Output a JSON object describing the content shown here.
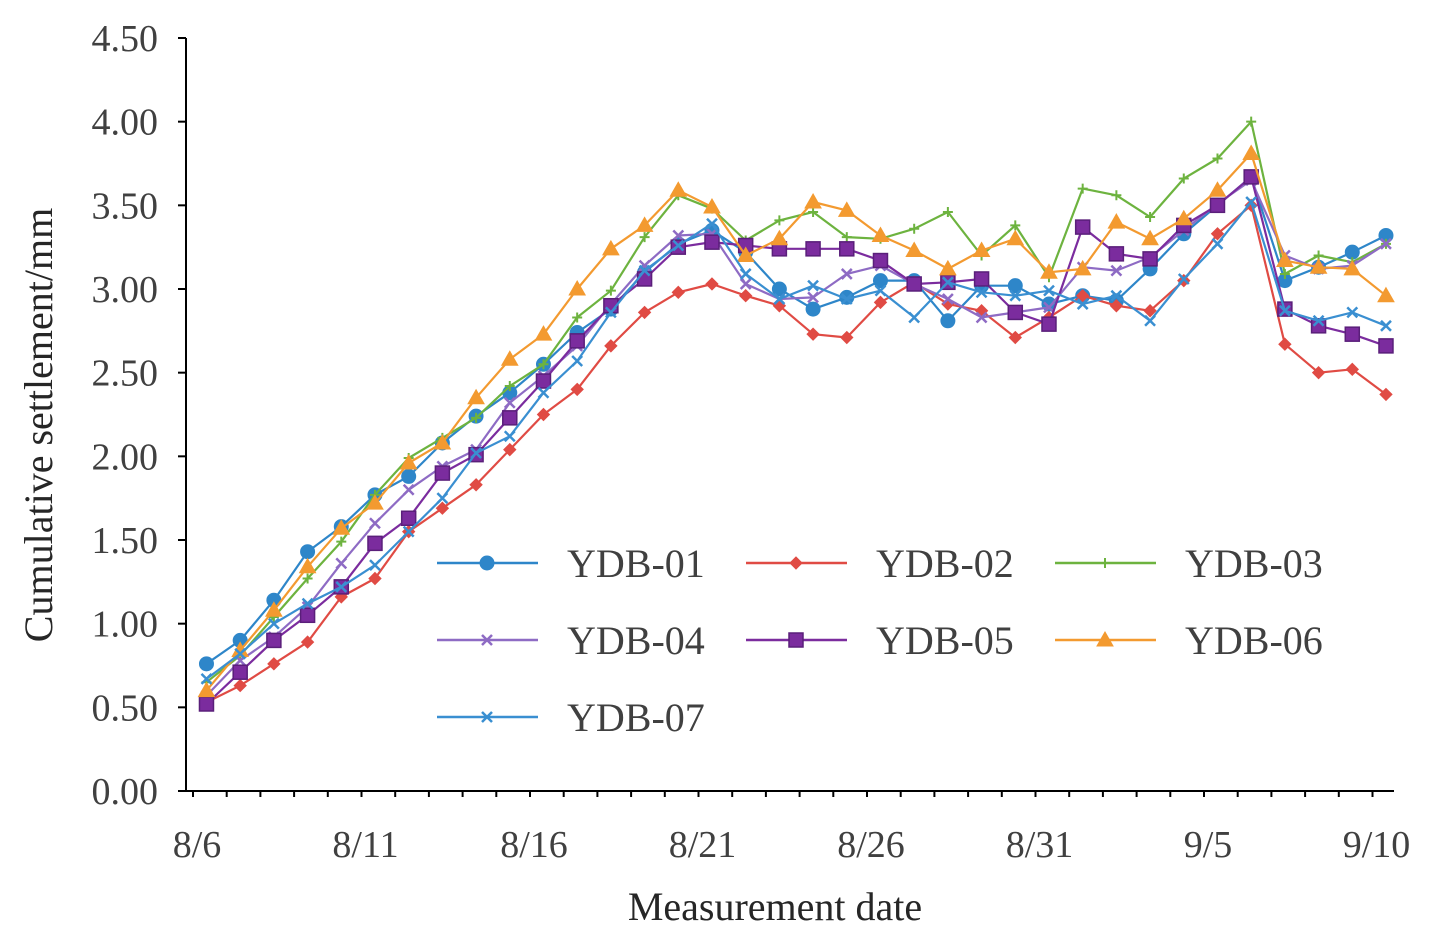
{
  "chart_data": {
    "type": "line",
    "title": "",
    "xlabel": "Measurement date",
    "ylabel": "Cumulative settlement/mm",
    "ylim": [
      0,
      4.5
    ],
    "yticks": [
      "0.00",
      "0.50",
      "1.00",
      "1.50",
      "2.00",
      "2.50",
      "3.00",
      "3.50",
      "4.00",
      "4.50"
    ],
    "xlim": [
      0,
      36
    ],
    "xticks": [
      {
        "label": "8/6",
        "at": 0
      },
      {
        "label": "8/11",
        "at": 5
      },
      {
        "label": "8/16",
        "at": 10
      },
      {
        "label": "8/21",
        "at": 15
      },
      {
        "label": "8/26",
        "at": 20
      },
      {
        "label": "8/31",
        "at": 25
      },
      {
        "label": "9/5",
        "at": 30
      },
      {
        "label": "9/10",
        "at": 35
      }
    ],
    "x": [
      0.4,
      1.4,
      2.4,
      3.4,
      4.4,
      5.4,
      6.4,
      7.4,
      8.4,
      9.4,
      10.4,
      11.4,
      12.4,
      13.4,
      14.4,
      15.4,
      16.4,
      17.4,
      18.4,
      19.4,
      20.4,
      21.4,
      22.4,
      23.4,
      24.4,
      25.4,
      26.4,
      27.4,
      28.4,
      29.4,
      30.4,
      31.4,
      32.4,
      33.4,
      34.4,
      35.4
    ],
    "series": [
      {
        "name": "YDB-01",
        "color": "#2E86C9",
        "marker": "circle",
        "values": [
          0.76,
          0.9,
          1.14,
          1.43,
          1.58,
          1.77,
          1.88,
          2.08,
          2.24,
          2.38,
          2.55,
          2.74,
          2.88,
          3.1,
          3.27,
          3.35,
          3.22,
          3.0,
          2.88,
          2.95,
          3.05,
          3.05,
          2.81,
          3.02,
          3.02,
          2.91,
          2.96,
          2.93,
          3.12,
          3.33,
          3.5,
          3.67,
          3.05,
          3.13,
          3.22,
          3.32
        ]
      },
      {
        "name": "YDB-02",
        "color": "#E04B44",
        "marker": "diamond",
        "values": [
          0.53,
          0.63,
          0.76,
          0.89,
          1.16,
          1.27,
          1.55,
          1.69,
          1.83,
          2.04,
          2.25,
          2.4,
          2.66,
          2.86,
          2.98,
          3.03,
          2.96,
          2.9,
          2.73,
          2.71,
          2.92,
          3.04,
          2.91,
          2.87,
          2.71,
          2.83,
          2.96,
          2.9,
          2.87,
          3.05,
          3.33,
          3.5,
          2.67,
          2.5,
          2.52,
          2.37
        ]
      },
      {
        "name": "YDB-03",
        "color": "#6DB33F",
        "marker": "plus",
        "values": [
          0.65,
          0.81,
          1.04,
          1.27,
          1.49,
          1.77,
          1.99,
          2.11,
          2.23,
          2.42,
          2.55,
          2.83,
          2.99,
          3.31,
          3.56,
          3.48,
          3.29,
          3.41,
          3.46,
          3.31,
          3.3,
          3.36,
          3.46,
          3.2,
          3.38,
          3.07,
          3.6,
          3.56,
          3.43,
          3.66,
          3.78,
          4.0,
          3.09,
          3.2,
          3.16,
          3.27
        ]
      },
      {
        "name": "YDB-04",
        "color": "#8E6BC4",
        "marker": "x",
        "values": [
          0.57,
          0.78,
          0.92,
          1.1,
          1.36,
          1.6,
          1.8,
          1.94,
          2.04,
          2.32,
          2.48,
          2.66,
          2.91,
          3.14,
          3.32,
          3.33,
          3.03,
          2.94,
          2.95,
          3.09,
          3.14,
          3.03,
          2.94,
          2.83,
          2.86,
          2.89,
          3.13,
          3.11,
          3.19,
          3.35,
          3.51,
          3.65,
          3.2,
          3.12,
          3.14,
          3.27
        ]
      },
      {
        "name": "YDB-05",
        "color": "#7B2C9E",
        "marker": "square",
        "values": [
          0.52,
          0.71,
          0.9,
          1.05,
          1.22,
          1.48,
          1.63,
          1.9,
          2.01,
          2.23,
          2.45,
          2.69,
          2.9,
          3.06,
          3.25,
          3.28,
          3.26,
          3.24,
          3.24,
          3.24,
          3.17,
          3.03,
          3.04,
          3.06,
          2.86,
          2.79,
          3.37,
          3.21,
          3.18,
          3.38,
          3.5,
          3.67,
          2.88,
          2.78,
          2.73,
          2.66
        ]
      },
      {
        "name": "YDB-06",
        "color": "#F39A30",
        "marker": "triangle",
        "values": [
          0.6,
          0.84,
          1.08,
          1.34,
          1.57,
          1.72,
          1.96,
          2.08,
          2.35,
          2.58,
          2.73,
          3.0,
          3.24,
          3.38,
          3.59,
          3.49,
          3.2,
          3.3,
          3.52,
          3.47,
          3.32,
          3.23,
          3.12,
          3.23,
          3.3,
          3.1,
          3.12,
          3.4,
          3.3,
          3.42,
          3.59,
          3.81,
          3.17,
          3.13,
          3.12,
          2.96
        ]
      },
      {
        "name": "YDB-07",
        "color": "#3A8FD1",
        "marker": "x",
        "values": [
          0.67,
          0.82,
          1.0,
          1.12,
          1.22,
          1.35,
          1.55,
          1.75,
          2.02,
          2.12,
          2.38,
          2.57,
          2.86,
          3.11,
          3.26,
          3.39,
          3.09,
          2.94,
          3.02,
          2.94,
          2.99,
          2.83,
          3.04,
          2.98,
          2.96,
          2.99,
          2.91,
          2.96,
          2.81,
          3.06,
          3.27,
          3.52,
          2.87,
          2.81,
          2.86,
          2.78
        ]
      }
    ],
    "legend": {
      "position": "lower-center",
      "columns": 3
    }
  }
}
